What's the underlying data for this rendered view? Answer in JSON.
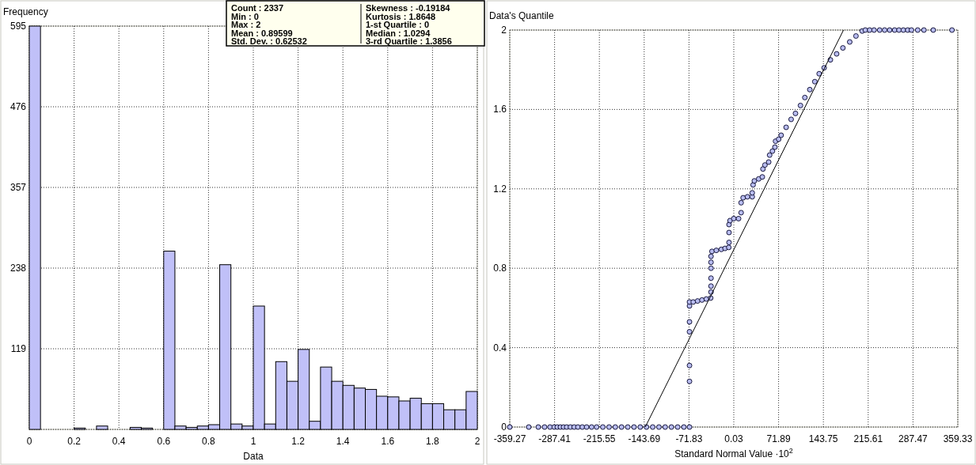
{
  "chart_data": [
    {
      "type": "histogram",
      "ylabel": "Frequency",
      "xlabel": "Data",
      "bins": [
        0,
        0.05,
        0.1,
        0.15,
        0.2,
        0.25,
        0.3,
        0.35,
        0.4,
        0.45,
        0.5,
        0.55,
        0.6,
        0.65,
        0.7,
        0.75,
        0.8,
        0.85,
        0.9,
        0.95,
        1,
        1.05,
        1.1,
        1.15,
        1.2,
        1.25,
        1.3,
        1.35,
        1.4,
        1.45,
        1.5,
        1.55,
        1.6,
        1.65,
        1.7,
        1.75,
        1.8,
        1.85,
        1.9,
        1.95,
        2
      ],
      "values": [
        595,
        0,
        0,
        0,
        2,
        0,
        5,
        0,
        0,
        3,
        2,
        0,
        263,
        5,
        3,
        5,
        7,
        243,
        8,
        5,
        182,
        8,
        100,
        71,
        118,
        12,
        92,
        71,
        65,
        61,
        59,
        49,
        48,
        42,
        46,
        38,
        38,
        29,
        29,
        56
      ],
      "color": "#c0c0f8",
      "xlim": [
        0,
        2
      ],
      "xticks": [
        0,
        0.2,
        0.4,
        0.6,
        0.8,
        1,
        1.2,
        1.4,
        1.6,
        1.8,
        2
      ],
      "ylim": [
        0,
        595
      ],
      "yticks": [
        {
          "value": 0,
          "label": null
        },
        119,
        238,
        357,
        476,
        595
      ],
      "grid": true,
      "annotations": [
        "Count : 2337",
        "Min : 0",
        "Max : 2",
        "Mean : 0.89599",
        "Std. Dev. : 0.62532",
        "Skewness : -0.19184",
        "Kurtosis : 1.8648",
        "1-st Quartile : 0",
        "Median : 1.0294",
        "3-rd Quartile : 1.3856"
      ]
    },
    {
      "type": "scatter",
      "ylabel": "Data's Quantile",
      "xlabel": "Standard Normal Value ·10$^{2}$",
      "xlim": [
        -359.27,
        359.33
      ],
      "xticks": [
        -359.27,
        -287.41,
        -215.55,
        -143.69,
        -71.83,
        0.03,
        71.89,
        143.75,
        215.61,
        287.47,
        359.33
      ],
      "ylim": [
        0,
        2
      ],
      "yticks": [
        0,
        0.4,
        0.8,
        1.2,
        1.6,
        2
      ],
      "grid": true,
      "series": [
        {
          "type": "scatter",
          "marker": "circle",
          "color": "#b8bcf0",
          "x": [
            -359.27,
            -328.8,
            -313.5,
            -303.4,
            -294.7,
            -288,
            -283,
            -278,
            -273,
            -268,
            -262,
            -256,
            -250,
            -243,
            -236,
            -228,
            -220,
            -210,
            -200,
            -190,
            -180,
            -170,
            -160,
            -150,
            -140,
            -130,
            -120,
            -110,
            -100,
            -90,
            -80,
            -71,
            -71,
            -71,
            -71,
            -71,
            -71,
            -71,
            -65,
            -58,
            -51,
            -44,
            -37,
            -36.5,
            -36.5,
            -36.5,
            -36.5,
            -36.5,
            -36.5,
            -35,
            -28,
            -20,
            -14,
            -8,
            -7.6,
            -7.6,
            -7.6,
            -6,
            0,
            7.7,
            11.8,
            11.8,
            15,
            22,
            29.6,
            29.6,
            31,
            33,
            40,
            45.8,
            46.8,
            50,
            56,
            57.5,
            62,
            66,
            67,
            72,
            76,
            84,
            92,
            99,
            107,
            114,
            122,
            130,
            137,
            145,
            155,
            165,
            175,
            186,
            196,
            206,
            211,
            218,
            225,
            234,
            242,
            250,
            258,
            265,
            272,
            279,
            285,
            295,
            305,
            320,
            350
          ],
          "values": [
            0,
            0,
            0,
            0,
            0,
            0,
            0,
            0,
            0,
            0,
            0,
            0,
            0,
            0,
            0,
            0,
            0,
            0,
            0,
            0,
            0,
            0,
            0,
            0,
            0,
            0,
            0,
            0,
            0,
            0,
            0,
            0,
            0.23,
            0.31,
            0.48,
            0.53,
            0.61,
            0.63,
            0.63,
            0.635,
            0.64,
            0.645,
            0.65,
            0.68,
            0.71,
            0.75,
            0.8,
            0.83,
            0.86,
            0.885,
            0.89,
            0.895,
            0.9,
            0.905,
            0.93,
            0.98,
            1.02,
            1.04,
            1.05,
            1.05,
            1.08,
            1.13,
            1.155,
            1.16,
            1.16,
            1.18,
            1.22,
            1.24,
            1.25,
            1.26,
            1.3,
            1.32,
            1.335,
            1.37,
            1.39,
            1.41,
            1.44,
            1.45,
            1.47,
            1.51,
            1.55,
            1.58,
            1.62,
            1.66,
            1.7,
            1.74,
            1.78,
            1.81,
            1.85,
            1.88,
            1.91,
            1.94,
            1.97,
            1.995,
            2,
            2,
            2,
            2,
            2,
            2,
            2,
            2,
            2,
            2,
            2,
            2,
            2,
            2,
            2
          ]
        },
        {
          "type": "line",
          "color": "#000000",
          "x": [
            -142,
            176
          ],
          "values": [
            0,
            2
          ]
        }
      ]
    }
  ]
}
